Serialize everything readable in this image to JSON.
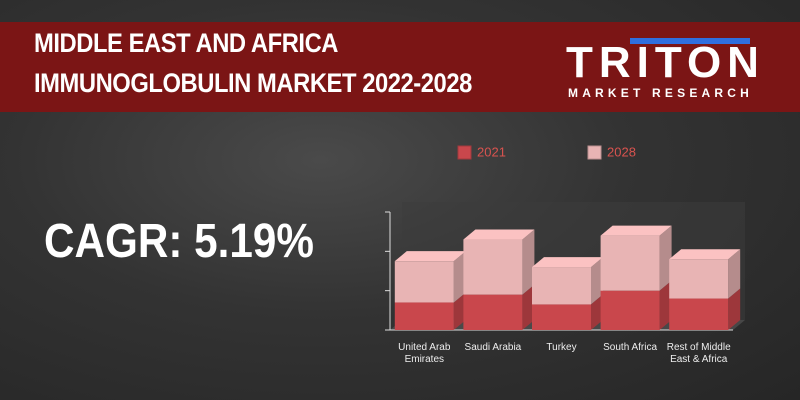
{
  "header": {
    "title_lines": [
      "MIDDLE EAST AND AFRICA",
      "IMMUNOGLOBULIN MARKET 2022-2028"
    ],
    "logo": "TRITON",
    "logo_tagline": "MARKET RESEARCH"
  },
  "callout": "CAGR: 5.19%",
  "chart_data": {
    "type": "stacked-bar-3d",
    "categories": [
      "United Arab Emirates",
      "Saudi Arabia",
      "Turkey",
      "South Africa",
      "Rest of Middle East & Africa"
    ],
    "series": [
      {
        "name": "2021",
        "color": "#c9474c",
        "values": [
          0.7,
          0.9,
          0.65,
          1.0,
          0.8
        ]
      },
      {
        "name": "2028",
        "color": "#e8b4b4",
        "values": [
          1.05,
          1.4,
          0.95,
          1.4,
          1.0
        ]
      }
    ],
    "ylim": [
      0,
      3
    ],
    "yticks": [
      0,
      1,
      2,
      3
    ]
  }
}
